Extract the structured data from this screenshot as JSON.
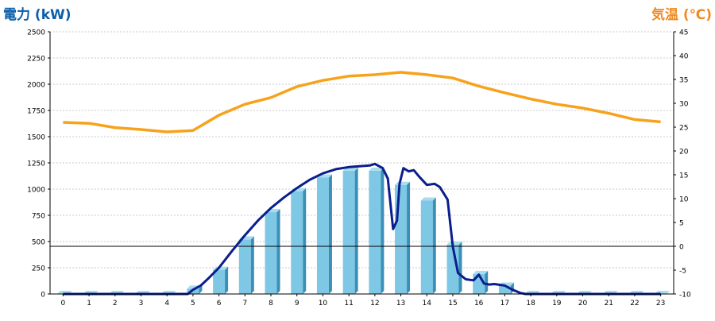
{
  "title_left": "電力 (kW)",
  "title_right": "気温 (℃)",
  "colors": {
    "bar_front": "#7ec8e6",
    "bar_side": "#3a8fb6",
    "bar_top": "#a9dcef",
    "power_line": "#0a1e8c",
    "temp_line": "#f7a21b",
    "grid": "#c9c9c9",
    "axis": "#000000",
    "left_title": "#0b5fa8",
    "right_title": "#f08a22"
  },
  "chart_data": {
    "type": "bar",
    "categories": [
      "0",
      "1",
      "2",
      "3",
      "4",
      "5",
      "6",
      "7",
      "8",
      "9",
      "10",
      "11",
      "12",
      "13",
      "14",
      "15",
      "16",
      "17",
      "18",
      "19",
      "20",
      "21",
      "22",
      "23"
    ],
    "y_left": {
      "min": 0,
      "max": 2500,
      "ticks": [
        0,
        250,
        500,
        750,
        1000,
        1250,
        1500,
        1750,
        2000,
        2250,
        2500
      ]
    },
    "y_right": {
      "min": -10,
      "max": 45,
      "ticks": [
        -10,
        -5,
        0,
        5,
        10,
        15,
        20,
        25,
        30,
        35,
        40,
        45
      ]
    },
    "grid": true,
    "bars": {
      "axis": "left",
      "values": [
        0,
        0,
        0,
        0,
        0,
        50,
        230,
        520,
        780,
        980,
        1110,
        1175,
        1175,
        1040,
        890,
        470,
        190,
        80,
        0,
        0,
        0,
        0,
        0,
        0
      ]
    },
    "power_line": {
      "axis": "left",
      "points": [
        [
          0,
          0
        ],
        [
          0.5,
          0
        ],
        [
          1,
          0
        ],
        [
          1.5,
          0
        ],
        [
          2,
          0
        ],
        [
          2.5,
          0
        ],
        [
          3,
          0
        ],
        [
          3.5,
          0
        ],
        [
          4,
          0
        ],
        [
          4.5,
          0
        ],
        [
          4.8,
          0
        ],
        [
          5,
          40
        ],
        [
          5.3,
          80
        ],
        [
          5.6,
          150
        ],
        [
          6,
          250
        ],
        [
          6.5,
          410
        ],
        [
          7,
          560
        ],
        [
          7.5,
          700
        ],
        [
          8,
          820
        ],
        [
          8.5,
          920
        ],
        [
          9,
          1010
        ],
        [
          9.5,
          1090
        ],
        [
          10,
          1150
        ],
        [
          10.5,
          1190
        ],
        [
          11,
          1210
        ],
        [
          11.5,
          1220
        ],
        [
          11.8,
          1225
        ],
        [
          12,
          1240
        ],
        [
          12.3,
          1200
        ],
        [
          12.5,
          1100
        ],
        [
          12.7,
          620
        ],
        [
          12.85,
          700
        ],
        [
          12.95,
          1050
        ],
        [
          13.1,
          1200
        ],
        [
          13.3,
          1170
        ],
        [
          13.5,
          1180
        ],
        [
          13.7,
          1120
        ],
        [
          14,
          1040
        ],
        [
          14.3,
          1050
        ],
        [
          14.5,
          1020
        ],
        [
          14.8,
          900
        ],
        [
          15,
          450
        ],
        [
          15.2,
          200
        ],
        [
          15.5,
          140
        ],
        [
          15.8,
          130
        ],
        [
          16,
          185
        ],
        [
          16.2,
          100
        ],
        [
          16.4,
          90
        ],
        [
          16.6,
          95
        ],
        [
          17,
          80
        ],
        [
          17.3,
          40
        ],
        [
          17.6,
          10
        ],
        [
          17.8,
          0
        ],
        [
          18,
          0
        ],
        [
          19,
          0
        ],
        [
          20,
          0
        ],
        [
          21,
          0
        ],
        [
          22,
          0
        ],
        [
          23,
          0
        ]
      ]
    },
    "temp_line": {
      "axis": "right",
      "x": [
        0,
        1,
        2,
        3,
        4,
        5,
        6,
        7,
        8,
        9,
        10,
        11,
        12,
        13,
        14,
        15,
        16,
        17,
        18,
        19,
        20,
        21,
        22,
        23
      ],
      "values": [
        26,
        25.8,
        24.9,
        24.5,
        24,
        24.3,
        27.5,
        29.8,
        31.2,
        33.5,
        34.8,
        35.7,
        36,
        36.5,
        36,
        35.3,
        33.6,
        32.2,
        30.9,
        29.8,
        29,
        27.9,
        26.6,
        26.1
      ]
    },
    "reference_line": {
      "axis": "right",
      "value": 0
    }
  }
}
